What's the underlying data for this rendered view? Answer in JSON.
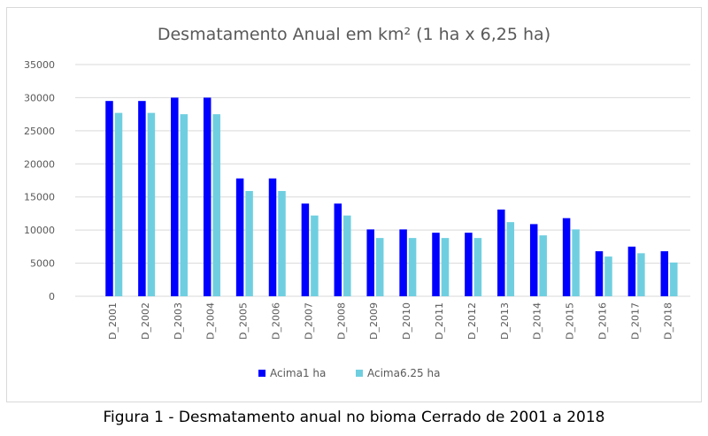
{
  "chart_data": {
    "type": "bar",
    "title": "Desmatamento Anual em km² (1 ha x 6,25 ha)",
    "categories": [
      "D_2001",
      "D_2002",
      "D_2003",
      "D_2004",
      "D_2005",
      "D_2006",
      "D_2007",
      "D_2008",
      "D_2009",
      "D_2010",
      "D_2011",
      "D_2012",
      "D_2013",
      "D_2014",
      "D_2015",
      "D_2016",
      "D_2017",
      "D_2018"
    ],
    "series": [
      {
        "name": "Acima1 ha",
        "color": "#0000ff",
        "values": [
          29500,
          29500,
          30000,
          30000,
          17800,
          17800,
          14000,
          14000,
          10100,
          10100,
          9600,
          9600,
          13100,
          10900,
          11800,
          6800,
          7500,
          6800
        ]
      },
      {
        "name": "Acima6.25 ha",
        "color": "#6fcfe0",
        "values": [
          27700,
          27700,
          27500,
          27500,
          15900,
          15900,
          12200,
          12200,
          8800,
          8800,
          8800,
          8800,
          11200,
          9200,
          10100,
          6000,
          6500,
          5100
        ]
      }
    ],
    "yticks": [
      "0",
      "5000",
      "10000",
      "15000",
      "20000",
      "25000",
      "30000",
      "35000"
    ],
    "ylim": [
      0,
      35000
    ],
    "grid": true,
    "legend_position": "bottom"
  },
  "caption": "Figura 1 - Desmatamento anual no bioma Cerrado de 2001 a 2018"
}
